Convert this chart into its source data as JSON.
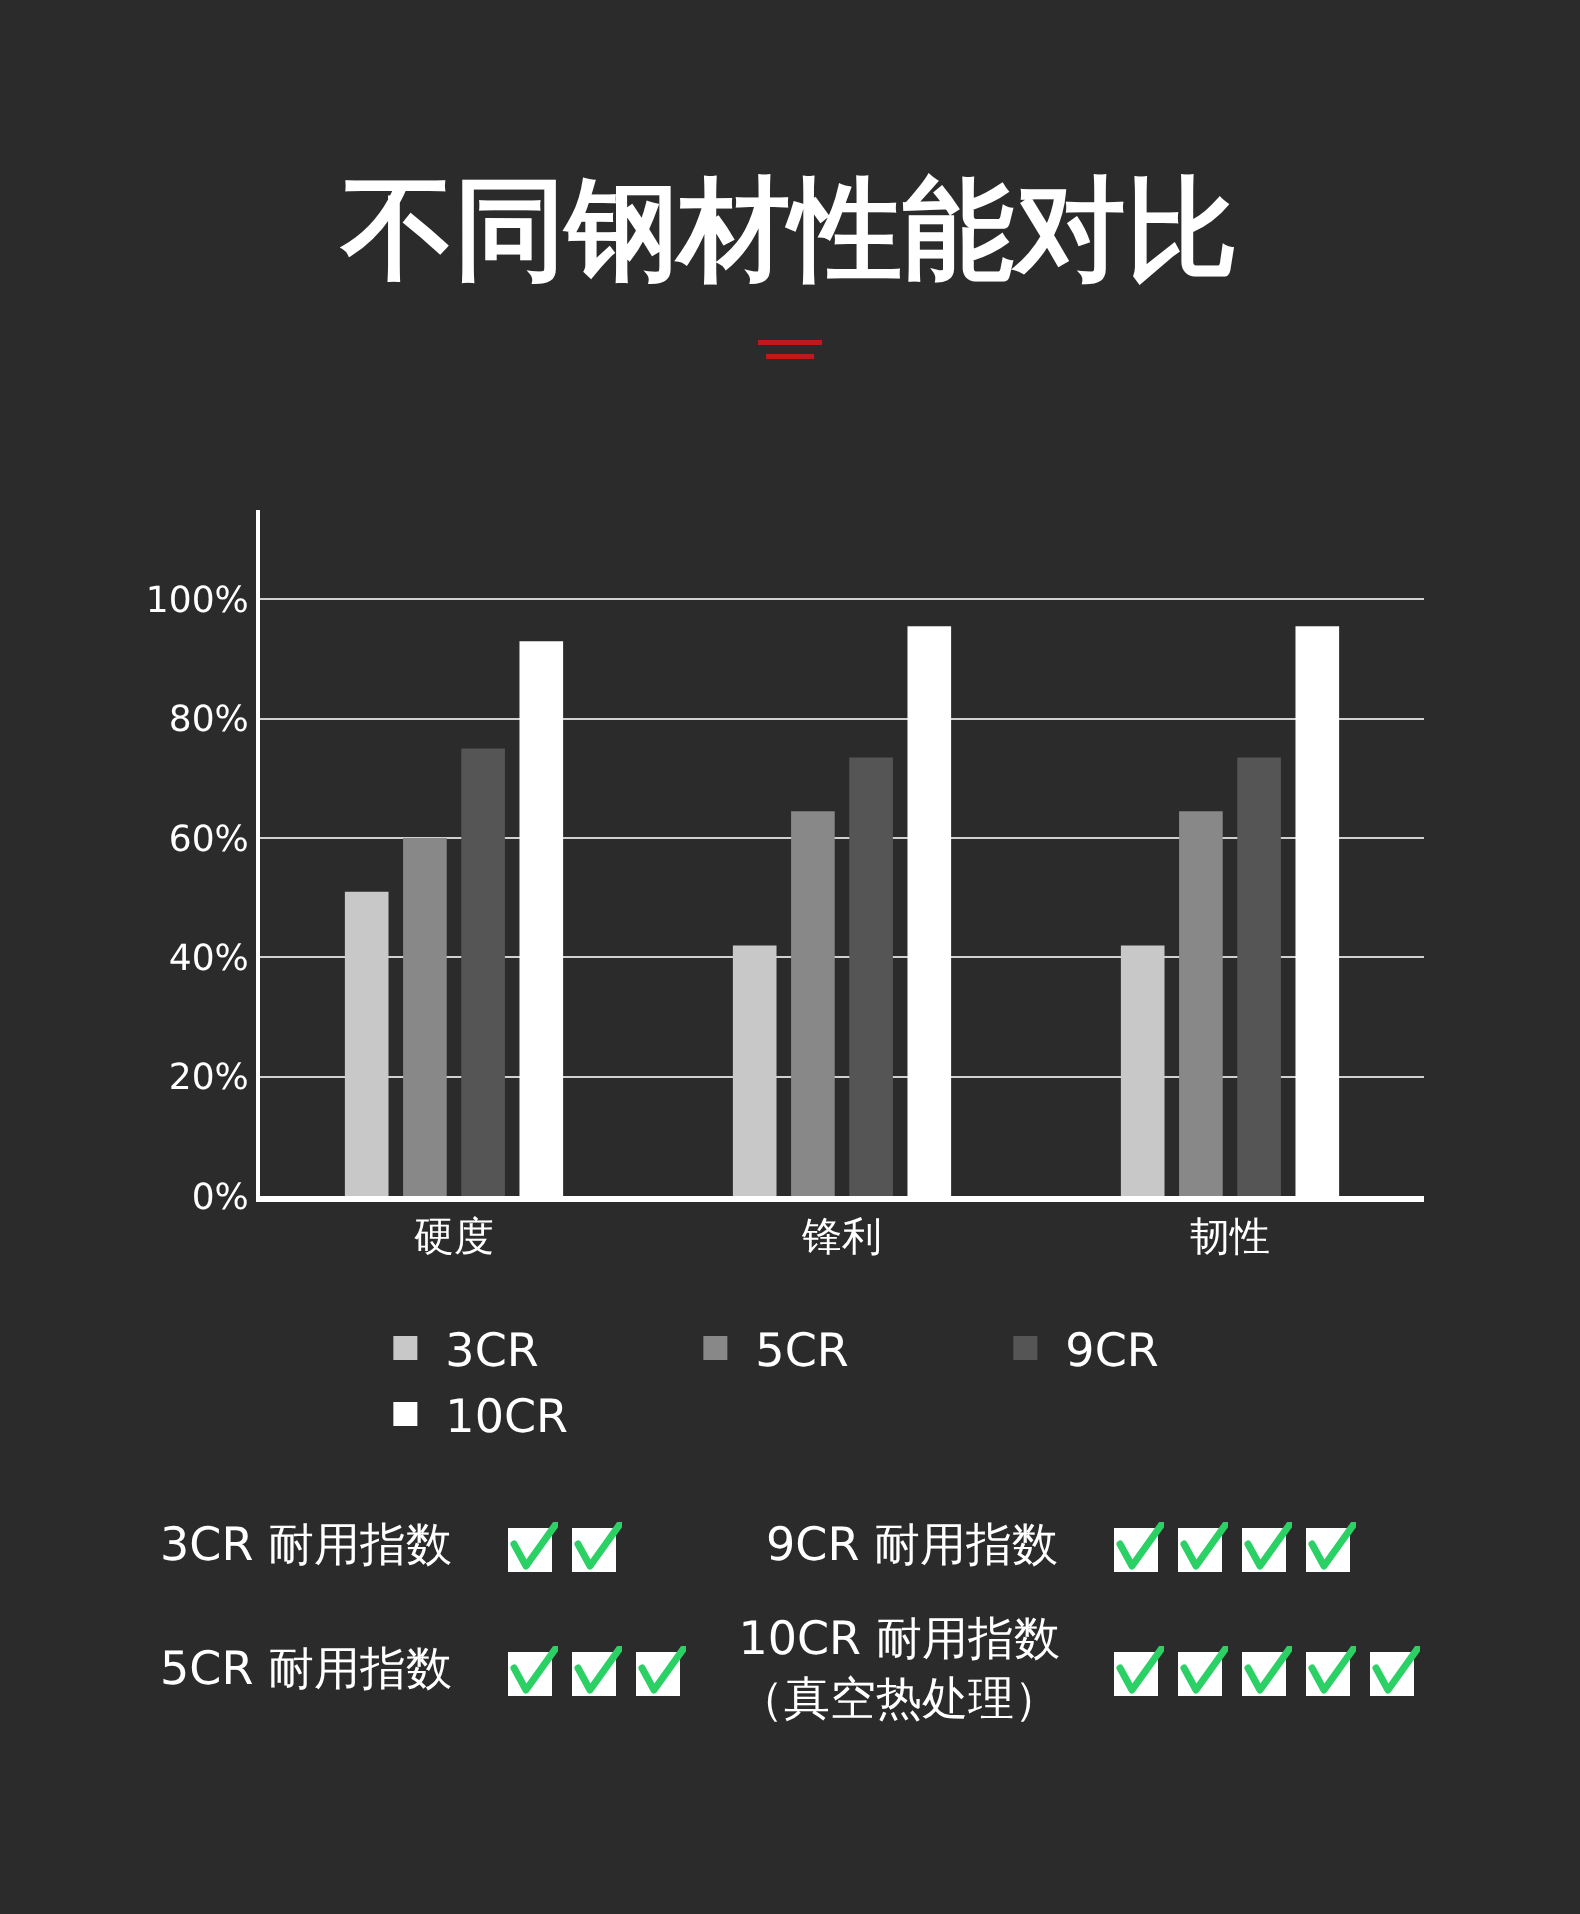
{
  "chart_data": {
    "type": "bar",
    "title": "不同钢材性能对比",
    "categories": [
      "硬度",
      "锋利",
      "韧性"
    ],
    "series": [
      {
        "name": "3CR",
        "color": "#c8c8c8",
        "values": [
          51,
          42,
          42
        ]
      },
      {
        "name": "5CR",
        "color": "#888888",
        "values": [
          60,
          64.5,
          64.5
        ]
      },
      {
        "name": "9CR",
        "color": "#555555",
        "values": [
          75,
          73.5,
          73.5
        ]
      },
      {
        "name": "10CR",
        "color": "#ffffff",
        "values": [
          93,
          95.5,
          95.5
        ]
      }
    ],
    "ylim": [
      0,
      115
    ],
    "yticks": [
      {
        "value": 0,
        "label": "0%"
      },
      {
        "value": 20,
        "label": "20%"
      },
      {
        "value": 40,
        "label": "40%"
      },
      {
        "value": 60,
        "label": "60%"
      },
      {
        "value": 80,
        "label": "80%"
      },
      {
        "value": 100,
        "label": "100%"
      }
    ],
    "grid": "y",
    "legend": "bottom",
    "annotations": [
      "3CR 耐用指数",
      "5CR 耐用指数",
      "9CR 耐用指数",
      "10CR 耐用指数（真空热处理）"
    ]
  }
}
